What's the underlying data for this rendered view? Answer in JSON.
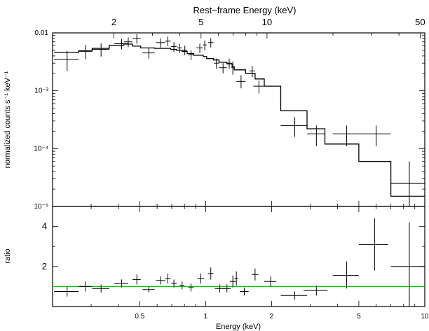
{
  "chart_data": [
    {
      "type": "scatter",
      "panel": "spectrum",
      "xscale": "log",
      "yscale": "log",
      "xlim": [
        0.2,
        10
      ],
      "ylim": [
        1e-05,
        0.01
      ],
      "xlabel": "Energy (keV)",
      "ylabel": "normalized counts s⁻¹ keV⁻¹",
      "top_axis_label": "Rest−frame Energy (keV)",
      "x_ticks": [
        0.5,
        1,
        2,
        5,
        10
      ],
      "x_tick_labels": [
        "0.5",
        "1",
        "2",
        "5",
        "10"
      ],
      "top_ticks": [
        2,
        5,
        10,
        50
      ],
      "top_tick_labels": [
        "2",
        "5",
        "10",
        "50"
      ],
      "y_tick_labels": [
        "0.01",
        "10⁻³",
        "10⁻⁴",
        "10⁻⁵"
      ],
      "series": [
        {
          "kind": "data",
          "color": "#000000",
          "points": [
            {
              "x": 0.233,
              "xerr": [
                0.203,
                0.263
              ],
              "y": 0.0035,
              "yerr": [
                0.0022,
                0.0049
              ]
            },
            {
              "x": 0.283,
              "xerr": [
                0.263,
                0.303
              ],
              "y": 0.0048,
              "yerr": [
                0.0035,
                0.0062
              ]
            },
            {
              "x": 0.333,
              "xerr": [
                0.303,
                0.363
              ],
              "y": 0.0052,
              "yerr": [
                0.0039,
                0.0066
              ]
            },
            {
              "x": 0.413,
              "xerr": [
                0.383,
                0.443
              ],
              "y": 0.0065,
              "yerr": [
                0.0052,
                0.0078
              ]
            },
            {
              "x": 0.443,
              "xerr": [
                0.423,
                0.463
              ],
              "y": 0.007,
              "yerr": [
                0.0057,
                0.0083
              ]
            },
            {
              "x": 0.485,
              "xerr": [
                0.463,
                0.505
              ],
              "y": 0.008,
              "yerr": [
                0.0065,
                0.0095
              ]
            },
            {
              "x": 0.55,
              "xerr": [
                0.515,
                0.585
              ],
              "y": 0.0045,
              "yerr": [
                0.0036,
                0.0055
              ]
            },
            {
              "x": 0.623,
              "xerr": [
                0.593,
                0.653
              ],
              "y": 0.0068,
              "yerr": [
                0.0056,
                0.008
              ]
            },
            {
              "x": 0.672,
              "xerr": [
                0.652,
                0.692
              ],
              "y": 0.0072,
              "yerr": [
                0.0059,
                0.0086
              ]
            },
            {
              "x": 0.716,
              "xerr": [
                0.696,
                0.736
              ],
              "y": 0.0058,
              "yerr": [
                0.0047,
                0.0069
              ]
            },
            {
              "x": 0.76,
              "xerr": [
                0.74,
                0.78
              ],
              "y": 0.0055,
              "yerr": [
                0.0045,
                0.0065
              ]
            },
            {
              "x": 0.803,
              "xerr": [
                0.783,
                0.823
              ],
              "y": 0.005,
              "yerr": [
                0.0041,
                0.006
              ]
            },
            {
              "x": 0.857,
              "xerr": [
                0.832,
                0.882
              ],
              "y": 0.0042,
              "yerr": [
                0.0034,
                0.005
              ]
            },
            {
              "x": 0.94,
              "xerr": [
                0.905,
                0.975
              ],
              "y": 0.0055,
              "yerr": [
                0.0045,
                0.0065
              ]
            },
            {
              "x": 0.99,
              "xerr": [
                0.97,
                1.01
              ],
              "y": 0.0062,
              "yerr": [
                0.005,
                0.0074
              ]
            },
            {
              "x": 1.055,
              "xerr": [
                1.025,
                1.085
              ],
              "y": 0.0068,
              "yerr": [
                0.0056,
                0.0081
              ]
            },
            {
              "x": 1.12,
              "xerr": [
                1.09,
                1.15
              ],
              "y": 0.003,
              "yerr": [
                0.0024,
                0.0036
              ]
            },
            {
              "x": 1.2,
              "xerr": [
                1.15,
                1.25
              ],
              "y": 0.0025,
              "yerr": [
                0.002,
                0.003
              ]
            },
            {
              "x": 1.28,
              "xerr": [
                1.24,
                1.32
              ],
              "y": 0.003,
              "yerr": [
                0.0024,
                0.0036
              ]
            },
            {
              "x": 1.33,
              "xerr": [
                1.31,
                1.35
              ],
              "y": 0.0025,
              "yerr": [
                0.0019,
                0.0032
              ]
            },
            {
              "x": 1.45,
              "xerr": [
                1.38,
                1.52
              ],
              "y": 0.00145,
              "yerr": [
                0.0011,
                0.00185
              ]
            },
            {
              "x": 1.63,
              "xerr": [
                1.58,
                1.68
              ],
              "y": 0.0022,
              "yerr": [
                0.0017,
                0.0027
              ]
            },
            {
              "x": 1.75,
              "xerr": [
                1.65,
                1.85
              ],
              "y": 0.0012,
              "yerr": [
                0.0009,
                0.0015
              ]
            },
            {
              "x": 2.55,
              "xerr": [
                2.2,
                2.9
              ],
              "y": 0.00025,
              "yerr": [
                0.00016,
                0.00035
              ]
            },
            {
              "x": 3.2,
              "xerr": [
                2.9,
                3.5
              ],
              "y": 0.00018,
              "yerr": [
                0.00011,
                0.00025
              ]
            },
            {
              "x": 4.4,
              "xerr": [
                3.8,
                5.0
              ],
              "y": 0.00018,
              "yerr": [
                0.00011,
                0.00025
              ]
            },
            {
              "x": 6.0,
              "xerr": [
                5.0,
                7.0
              ],
              "y": 0.00018,
              "yerr": [
                0.00011,
                0.00025
              ]
            },
            {
              "x": 8.5,
              "xerr": [
                7.0,
                10.0
              ],
              "y": 2.5e-05,
              "yerr": [
                1e-05,
                6e-05
              ]
            }
          ]
        },
        {
          "kind": "model-step",
          "color": "#000000",
          "edges": [
            0.203,
            0.263,
            0.303,
            0.363,
            0.423,
            0.463,
            0.505,
            0.585,
            0.653,
            0.692,
            0.736,
            0.78,
            0.823,
            0.882,
            0.975,
            1.01,
            1.085,
            1.15,
            1.25,
            1.32,
            1.35,
            1.52,
            1.68,
            1.85,
            2.2,
            2.9,
            3.5,
            5.0,
            7.0,
            10.0
          ],
          "values": [
            0.0046,
            0.0049,
            0.0054,
            0.0061,
            0.0064,
            0.0059,
            0.0055,
            0.0054,
            0.0054,
            0.0052,
            0.005,
            0.0048,
            0.0044,
            0.0041,
            0.0039,
            0.0036,
            0.0034,
            0.0031,
            0.0029,
            0.0026,
            0.0023,
            0.002,
            0.0016,
            0.0012,
            0.00045,
            0.00022,
            0.00012,
            6e-05,
            1.5e-05
          ]
        }
      ]
    },
    {
      "type": "scatter",
      "panel": "ratio",
      "xscale": "log",
      "yscale": "linear",
      "xlim": [
        0.2,
        10
      ],
      "ylim": [
        0,
        5
      ],
      "xlabel": "Energy (keV)",
      "ylabel": "ratio",
      "x_ticks": [
        0.5,
        1,
        2,
        5,
        10
      ],
      "x_tick_labels": [
        "0.5",
        "1",
        "2",
        "5",
        "10"
      ],
      "y_ticks": [
        2,
        4
      ],
      "y_tick_labels": [
        "2",
        "4"
      ],
      "reference_line": {
        "y": 1.0,
        "color": "#00cc00"
      },
      "series": [
        {
          "kind": "data",
          "color": "#000000",
          "points": [
            {
              "x": 0.233,
              "xerr": [
                0.203,
                0.263
              ],
              "y": 0.75,
              "yerr": [
                0.5,
                1.0
              ]
            },
            {
              "x": 0.283,
              "xerr": [
                0.263,
                0.303
              ],
              "y": 1.0,
              "yerr": [
                0.75,
                1.25
              ]
            },
            {
              "x": 0.333,
              "xerr": [
                0.303,
                0.363
              ],
              "y": 0.9,
              "yerr": [
                0.7,
                1.1
              ]
            },
            {
              "x": 0.413,
              "xerr": [
                0.383,
                0.443
              ],
              "y": 1.15,
              "yerr": [
                0.95,
                1.35
              ]
            },
            {
              "x": 0.485,
              "xerr": [
                0.463,
                0.505
              ],
              "y": 1.35,
              "yerr": [
                1.1,
                1.6
              ]
            },
            {
              "x": 0.55,
              "xerr": [
                0.515,
                0.585
              ],
              "y": 0.85,
              "yerr": [
                0.7,
                1.0
              ]
            },
            {
              "x": 0.623,
              "xerr": [
                0.593,
                0.653
              ],
              "y": 1.3,
              "yerr": [
                1.1,
                1.5
              ]
            },
            {
              "x": 0.672,
              "xerr": [
                0.652,
                0.692
              ],
              "y": 1.4,
              "yerr": [
                1.15,
                1.65
              ]
            },
            {
              "x": 0.716,
              "xerr": [
                0.696,
                0.736
              ],
              "y": 1.15,
              "yerr": [
                0.95,
                1.35
              ]
            },
            {
              "x": 0.78,
              "xerr": [
                0.76,
                0.8
              ],
              "y": 1.05,
              "yerr": [
                0.85,
                1.25
              ]
            },
            {
              "x": 0.857,
              "xerr": [
                0.832,
                0.882
              ],
              "y": 0.95,
              "yerr": [
                0.75,
                1.15
              ]
            },
            {
              "x": 0.95,
              "xerr": [
                0.915,
                0.985
              ],
              "y": 1.4,
              "yerr": [
                1.15,
                1.65
              ]
            },
            {
              "x": 1.055,
              "xerr": [
                1.025,
                1.085
              ],
              "y": 1.65,
              "yerr": [
                1.35,
                1.95
              ]
            },
            {
              "x": 1.16,
              "xerr": [
                1.1,
                1.22
              ],
              "y": 0.9,
              "yerr": [
                0.7,
                1.1
              ]
            },
            {
              "x": 1.25,
              "xerr": [
                1.2,
                1.3
              ],
              "y": 0.9,
              "yerr": [
                0.7,
                1.1
              ]
            },
            {
              "x": 1.33,
              "xerr": [
                1.29,
                1.37
              ],
              "y": 1.25,
              "yerr": [
                0.95,
                1.55
              ]
            },
            {
              "x": 1.38,
              "xerr": [
                1.35,
                1.41
              ],
              "y": 1.4,
              "yerr": [
                1.05,
                1.75
              ]
            },
            {
              "x": 1.5,
              "xerr": [
                1.43,
                1.57
              ],
              "y": 0.75,
              "yerr": [
                0.55,
                0.95
              ]
            },
            {
              "x": 1.68,
              "xerr": [
                1.62,
                1.74
              ],
              "y": 1.6,
              "yerr": [
                1.3,
                1.9
              ]
            },
            {
              "x": 1.98,
              "xerr": [
                1.85,
                2.1
              ],
              "y": 1.25,
              "yerr": [
                1.0,
                1.5
              ]
            },
            {
              "x": 2.55,
              "xerr": [
                2.2,
                2.9
              ],
              "y": 0.55,
              "yerr": [
                0.35,
                0.75
              ]
            },
            {
              "x": 3.2,
              "xerr": [
                2.8,
                3.6
              ],
              "y": 0.8,
              "yerr": [
                0.55,
                1.05
              ]
            },
            {
              "x": 4.4,
              "xerr": [
                3.8,
                5.0
              ],
              "y": 1.55,
              "yerr": [
                0.9,
                2.25
              ]
            },
            {
              "x": 5.9,
              "xerr": [
                5.0,
                6.8
              ],
              "y": 3.1,
              "yerr": [
                1.8,
                4.4
              ]
            },
            {
              "x": 8.5,
              "xerr": [
                7.0,
                10.0
              ],
              "y": 2.0,
              "yerr": [
                0.0,
                4.2
              ]
            }
          ]
        }
      ]
    }
  ]
}
